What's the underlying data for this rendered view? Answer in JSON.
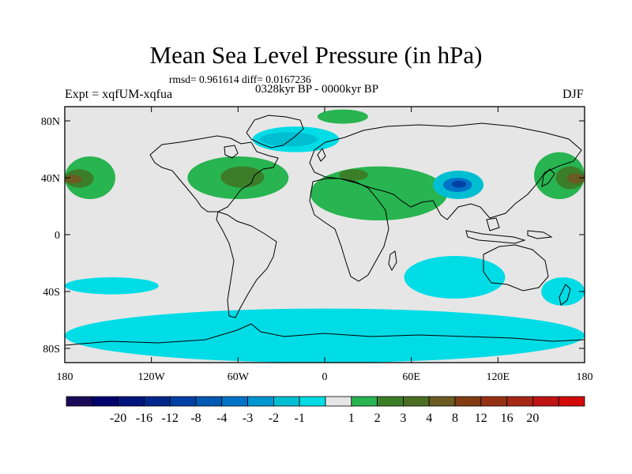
{
  "figure": {
    "title": "Mean Sea Level Pressure (in hPa)",
    "stats": "rmsd= 0.961614  diff= 0.0167236",
    "period": "0328kyr BP - 0000kyr BP",
    "left_label": "Expt = xqfUM-xqfua",
    "right_label": "DJF"
  },
  "map": {
    "lon_range": [
      -180,
      180
    ],
    "lat_range": [
      -90,
      90
    ],
    "background": "#e6e6e6",
    "x_ticks": [
      {
        "value": -180,
        "label": "180"
      },
      {
        "value": -120,
        "label": "120W"
      },
      {
        "value": -60,
        "label": "60W"
      },
      {
        "value": 0,
        "label": "0"
      },
      {
        "value": 60,
        "label": "60E"
      },
      {
        "value": 120,
        "label": "120E"
      },
      {
        "value": 180,
        "label": "180"
      }
    ],
    "y_ticks": [
      {
        "value": 80,
        "label": "80N"
      },
      {
        "value": 40,
        "label": "40N"
      },
      {
        "value": 0,
        "label": "0"
      },
      {
        "value": -40,
        "label": "40S"
      },
      {
        "value": -80,
        "label": "80S"
      }
    ],
    "anomaly_regions": [
      {
        "name": "n-pacific-high-west",
        "level": 2,
        "color": "#28b450",
        "lon": [
          -180,
          -145
        ],
        "lat": [
          25,
          55
        ]
      },
      {
        "name": "n-pacific-high-west-core",
        "level": 3,
        "color": "#3c7d28",
        "lon": [
          -180,
          -160
        ],
        "lat": [
          33,
          46
        ]
      },
      {
        "name": "n-pacific-high-west-center",
        "level": 4,
        "color": "#6b5a22",
        "lon": [
          -180,
          -168
        ],
        "lat": [
          36,
          42
        ]
      },
      {
        "name": "n-atlantic-high",
        "level": 2,
        "color": "#28b450",
        "lon": [
          -95,
          -25
        ],
        "lat": [
          25,
          55
        ]
      },
      {
        "name": "n-atlantic-high-core",
        "level": 3,
        "color": "#3c7d28",
        "lon": [
          -72,
          -42
        ],
        "lat": [
          33,
          48
        ]
      },
      {
        "name": "eurasia-high",
        "level": 2,
        "color": "#28b450",
        "lon": [
          -10,
          85
        ],
        "lat": [
          10,
          48
        ]
      },
      {
        "name": "eurasia-high-core",
        "level": 3,
        "color": "#3c7d28",
        "lon": [
          10,
          30
        ],
        "lat": [
          38,
          46
        ]
      },
      {
        "name": "n-pacific-high-east",
        "level": 2,
        "color": "#28b450",
        "lon": [
          145,
          180
        ],
        "lat": [
          25,
          58
        ]
      },
      {
        "name": "n-pacific-high-east-core",
        "level": 3,
        "color": "#3c7d28",
        "lon": [
          160,
          180
        ],
        "lat": [
          32,
          48
        ]
      },
      {
        "name": "n-pacific-high-east-center",
        "level": 4,
        "color": "#6b5a22",
        "lon": [
          168,
          180
        ],
        "lat": [
          36,
          43
        ]
      },
      {
        "name": "greenland-high",
        "level": 2,
        "color": "#28b450",
        "lon": [
          -5,
          30
        ],
        "lat": [
          78,
          88
        ]
      },
      {
        "name": "arctic-low",
        "level": -1,
        "color": "#00dce6",
        "lon": [
          -50,
          10
        ],
        "lat": [
          58,
          76
        ]
      },
      {
        "name": "arctic-low-core",
        "level": -2,
        "color": "#00bed2",
        "lon": [
          -45,
          -5
        ],
        "lat": [
          62,
          72
        ]
      },
      {
        "name": "tibet-low",
        "level": -2,
        "color": "#00bed2",
        "lon": [
          75,
          110
        ],
        "lat": [
          25,
          45
        ]
      },
      {
        "name": "tibet-low-core",
        "level": -4,
        "color": "#0073c8",
        "lon": [
          82,
          102
        ],
        "lat": [
          30,
          40
        ]
      },
      {
        "name": "tibet-low-center",
        "level": -8,
        "color": "#0041a5",
        "lon": [
          88,
          98
        ],
        "lat": [
          33,
          38
        ]
      },
      {
        "name": "s-pacific-low",
        "level": -1,
        "color": "#00dce6",
        "lon": [
          -180,
          -115
        ],
        "lat": [
          -42,
          -30
        ]
      },
      {
        "name": "indian-ocean-low",
        "level": -1,
        "color": "#00dce6",
        "lon": [
          55,
          125
        ],
        "lat": [
          -45,
          -15
        ]
      },
      {
        "name": "australia-east-low",
        "level": -1,
        "color": "#00dce6",
        "lon": [
          150,
          180
        ],
        "lat": [
          -50,
          -30
        ]
      },
      {
        "name": "southern-ocean-low",
        "level": -1,
        "color": "#00dce6",
        "lon": [
          -180,
          180
        ],
        "lat": [
          -90,
          -52
        ]
      }
    ]
  },
  "colorbar": {
    "colors": [
      "#190a5a",
      "#00006e",
      "#00147d",
      "#00288c",
      "#0041a5",
      "#0059b4",
      "#0073c8",
      "#0096d2",
      "#00bed2",
      "#00dce6",
      "#e6e6e6",
      "#28b450",
      "#3c7d28",
      "#4b6e23",
      "#6b5a22",
      "#823c14",
      "#963214",
      "#a52814",
      "#be1414",
      "#d20a0a"
    ],
    "labels": [
      "-20",
      "-16",
      "-12",
      "-8",
      "-4",
      "-3",
      "-2",
      "-1",
      "1",
      "2",
      "3",
      "4",
      "8",
      "12",
      "16",
      "20"
    ],
    "label_boundaries": [
      2,
      3,
      4,
      5,
      6,
      7,
      8,
      9,
      11,
      12,
      13,
      14,
      15,
      16,
      17,
      18
    ]
  }
}
